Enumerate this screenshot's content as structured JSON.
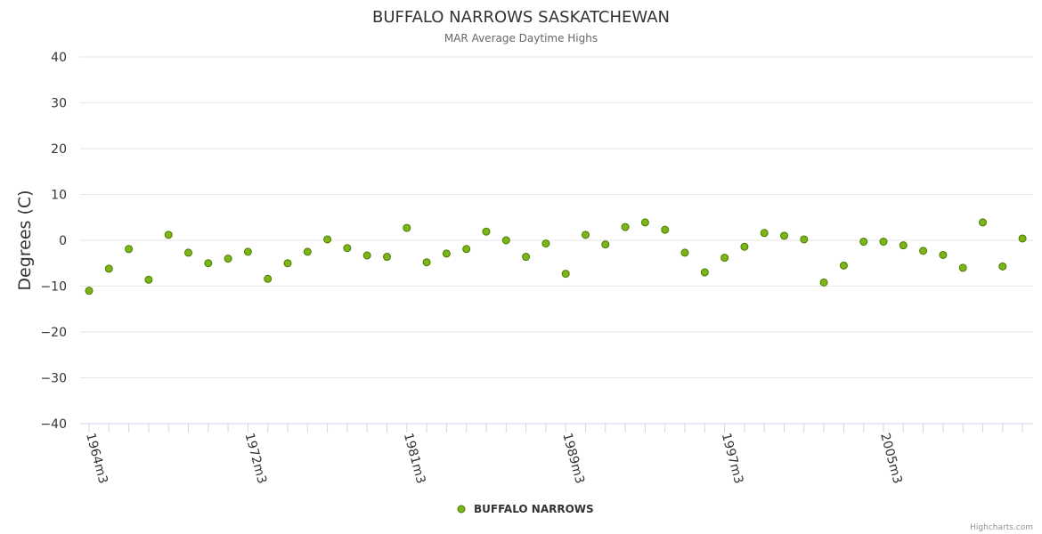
{
  "chart_data": {
    "type": "scatter",
    "title": "BUFFALO NARROWS SASKATCHEWAN",
    "subtitle": "MAR Average Daytime Highs",
    "ylabel": "Degrees (C)",
    "xlabel": "",
    "ylim": [
      -40,
      40
    ],
    "yticks": [
      40,
      30,
      20,
      10,
      0,
      -10,
      -20,
      -30,
      -40
    ],
    "x_categories_labeled": [
      "1964m3",
      "1972m3",
      "1981m3",
      "1989m3",
      "1997m3",
      "2005m3"
    ],
    "grid": true,
    "legend_position": "bottom-center",
    "series": [
      {
        "name": "BUFFALO NARROWS",
        "color": "#7cb517",
        "edge_color": "#4a7a00",
        "values": [
          -11,
          -6.2,
          -1.9,
          -8.6,
          1.2,
          -2.7,
          -5,
          -4,
          -2.5,
          -8.4,
          -5,
          -2.5,
          0.2,
          -1.7,
          -3.3,
          -3.6,
          2.7,
          -4.8,
          -2.9,
          -1.9,
          1.9,
          0,
          -3.6,
          -0.7,
          -7.3,
          1.2,
          -0.9,
          2.9,
          3.9,
          2.3,
          -2.7,
          -7,
          -3.8,
          -1.4,
          1.6,
          1.0,
          0.2,
          -9.2,
          -5.5,
          -0.3,
          -0.3,
          -1.1,
          -2.3,
          -3.2,
          -6,
          3.9,
          -5.7,
          0.4
        ]
      }
    ],
    "credits": "Highcharts.com"
  }
}
